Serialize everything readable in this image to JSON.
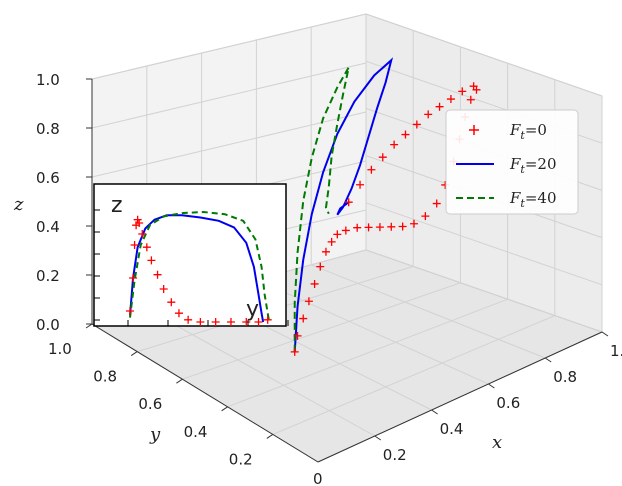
{
  "chart_data": {
    "type": "line",
    "projection": "3d",
    "axes": {
      "x": {
        "label": "x",
        "ticks": [
          "0.2",
          "0.4",
          "0.6",
          "0.8",
          "1.0"
        ],
        "range": [
          0,
          1
        ]
      },
      "y": {
        "label": "y",
        "ticks": [
          "0.2",
          "0.4",
          "0.6",
          "0.8",
          "1.0"
        ],
        "range": [
          0,
          1
        ]
      },
      "z": {
        "label": "z",
        "ticks": [
          "0.0",
          "0.2",
          "0.4",
          "0.6",
          "0.8",
          "1.0"
        ],
        "range": [
          0,
          1
        ]
      },
      "origin_label": "0"
    },
    "grid": true,
    "legend": {
      "placement": "right",
      "entries": [
        {
          "label": "F",
          "subscript": "t",
          "value": "=0",
          "color": "#ff0000",
          "marker": "+"
        },
        {
          "label": "F",
          "subscript": "t",
          "value": "=20",
          "color": "#0000ee",
          "style": "solid"
        },
        {
          "label": "F",
          "subscript": "t",
          "value": "=40",
          "color": "#007a00",
          "style": "dashed"
        }
      ]
    },
    "series": [
      {
        "color": "#ff0000",
        "marker": "+",
        "points": [
          [
            0.3,
            0.48,
            0.02
          ],
          [
            0.31,
            0.48,
            0.08
          ],
          [
            0.33,
            0.48,
            0.14
          ],
          [
            0.35,
            0.48,
            0.2
          ],
          [
            0.37,
            0.48,
            0.26
          ],
          [
            0.39,
            0.48,
            0.32
          ],
          [
            0.41,
            0.48,
            0.37
          ],
          [
            0.43,
            0.48,
            0.4
          ],
          [
            0.45,
            0.48,
            0.42
          ],
          [
            0.48,
            0.48,
            0.42
          ],
          [
            0.52,
            0.48,
            0.41
          ],
          [
            0.56,
            0.48,
            0.39
          ],
          [
            0.6,
            0.48,
            0.37
          ],
          [
            0.64,
            0.48,
            0.35
          ],
          [
            0.68,
            0.48,
            0.33
          ],
          [
            0.72,
            0.48,
            0.32
          ],
          [
            0.76,
            0.48,
            0.33
          ],
          [
            0.8,
            0.48,
            0.36
          ],
          [
            0.83,
            0.48,
            0.42
          ],
          [
            0.86,
            0.48,
            0.5
          ],
          [
            0.88,
            0.48,
            0.58
          ],
          [
            0.9,
            0.48,
            0.66
          ],
          [
            0.92,
            0.48,
            0.72
          ],
          [
            0.94,
            0.48,
            0.75
          ],
          [
            0.93,
            0.48,
            0.77
          ],
          [
            0.89,
            0.48,
            0.77
          ],
          [
            0.85,
            0.48,
            0.76
          ],
          [
            0.81,
            0.48,
            0.75
          ],
          [
            0.77,
            0.48,
            0.74
          ],
          [
            0.73,
            0.48,
            0.72
          ],
          [
            0.69,
            0.48,
            0.7
          ],
          [
            0.65,
            0.48,
            0.68
          ],
          [
            0.61,
            0.48,
            0.65
          ],
          [
            0.57,
            0.48,
            0.62
          ],
          [
            0.53,
            0.48,
            0.58
          ],
          [
            0.49,
            0.48,
            0.53
          ]
        ]
      },
      {
        "color": "#0000ee",
        "style": "solid",
        "points": [
          [
            0.3,
            0.48,
            0.02
          ],
          [
            0.31,
            0.48,
            0.2
          ],
          [
            0.33,
            0.48,
            0.38
          ],
          [
            0.36,
            0.48,
            0.55
          ],
          [
            0.4,
            0.48,
            0.7
          ],
          [
            0.45,
            0.48,
            0.83
          ],
          [
            0.51,
            0.48,
            0.93
          ],
          [
            0.58,
            0.48,
            1.0
          ],
          [
            0.64,
            0.48,
            1.03
          ],
          [
            0.62,
            0.48,
            0.95
          ],
          [
            0.59,
            0.48,
            0.86
          ],
          [
            0.56,
            0.48,
            0.76
          ],
          [
            0.53,
            0.48,
            0.66
          ],
          [
            0.5,
            0.48,
            0.58
          ],
          [
            0.47,
            0.48,
            0.52
          ],
          [
            0.45,
            0.48,
            0.5
          ],
          [
            0.46,
            0.48,
            0.52
          ],
          [
            0.49,
            0.48,
            0.53
          ]
        ]
      },
      {
        "color": "#007a00",
        "style": "dashed",
        "points": [
          [
            0.3,
            0.48,
            0.02
          ],
          [
            0.3,
            0.48,
            0.22
          ],
          [
            0.31,
            0.48,
            0.42
          ],
          [
            0.33,
            0.48,
            0.62
          ],
          [
            0.36,
            0.48,
            0.78
          ],
          [
            0.4,
            0.48,
            0.92
          ],
          [
            0.45,
            0.48,
            1.02
          ],
          [
            0.49,
            0.48,
            1.08
          ],
          [
            0.47,
            0.48,
            0.98
          ],
          [
            0.45,
            0.48,
            0.87
          ],
          [
            0.43,
            0.48,
            0.75
          ],
          [
            0.42,
            0.48,
            0.63
          ],
          [
            0.41,
            0.48,
            0.55
          ],
          [
            0.42,
            0.48,
            0.52
          ]
        ]
      }
    ],
    "inset": {
      "xlabel": "y",
      "ylabel": "z",
      "series": [
        {
          "color": "#ff0000",
          "marker": "+",
          "points": [
            [
              0.0,
              0.1
            ],
            [
              0.02,
              0.4
            ],
            [
              0.03,
              0.7
            ],
            [
              0.04,
              0.88
            ],
            [
              0.05,
              0.93
            ],
            [
              0.06,
              0.9
            ],
            [
              0.08,
              0.8
            ],
            [
              0.11,
              0.68
            ],
            [
              0.14,
              0.56
            ],
            [
              0.18,
              0.43
            ],
            [
              0.22,
              0.3
            ],
            [
              0.27,
              0.18
            ],
            [
              0.32,
              0.08
            ],
            [
              0.38,
              0.02
            ],
            [
              0.46,
              0.0
            ],
            [
              0.56,
              0.0
            ],
            [
              0.66,
              0.0
            ],
            [
              0.76,
              0.0
            ],
            [
              0.84,
              0.0
            ],
            [
              0.9,
              0.02
            ]
          ]
        },
        {
          "color": "#0000ee",
          "style": "solid",
          "points": [
            [
              0.0,
              0.06
            ],
            [
              0.02,
              0.4
            ],
            [
              0.05,
              0.68
            ],
            [
              0.1,
              0.85
            ],
            [
              0.16,
              0.93
            ],
            [
              0.24,
              0.97
            ],
            [
              0.34,
              0.97
            ],
            [
              0.46,
              0.95
            ],
            [
              0.58,
              0.92
            ],
            [
              0.68,
              0.86
            ],
            [
              0.76,
              0.72
            ],
            [
              0.81,
              0.5
            ],
            [
              0.84,
              0.25
            ],
            [
              0.86,
              0.08
            ],
            [
              0.87,
              0.0
            ]
          ]
        },
        {
          "color": "#007a00",
          "style": "dashed",
          "points": [
            [
              0.0,
              0.04
            ],
            [
              0.03,
              0.38
            ],
            [
              0.07,
              0.7
            ],
            [
              0.13,
              0.88
            ],
            [
              0.22,
              0.96
            ],
            [
              0.34,
              0.99
            ],
            [
              0.48,
              1.0
            ],
            [
              0.62,
              0.98
            ],
            [
              0.74,
              0.92
            ],
            [
              0.82,
              0.75
            ],
            [
              0.86,
              0.5
            ],
            [
              0.88,
              0.25
            ],
            [
              0.9,
              0.08
            ],
            [
              0.91,
              0.0
            ]
          ]
        }
      ]
    }
  }
}
